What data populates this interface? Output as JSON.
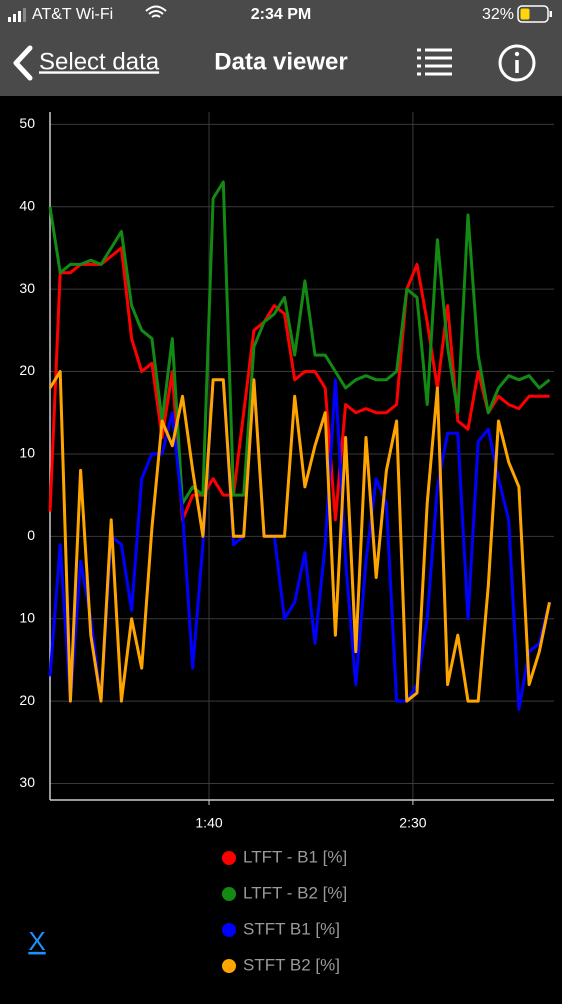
{
  "status_bar": {
    "carrier": "AT&T Wi-Fi",
    "time": "2:34 PM",
    "battery": "32%"
  },
  "nav": {
    "back": "Select data",
    "title": "Data viewer"
  },
  "chart_data": {
    "type": "line",
    "x": [
      61,
      63.5,
      66,
      68.5,
      71,
      73.5,
      76,
      78.5,
      81,
      83.5,
      86,
      88.5,
      91,
      93.5,
      96,
      98.5,
      101,
      103.5,
      106,
      108.5,
      111,
      113.5,
      116,
      118.5,
      121,
      123.5,
      126,
      128.5,
      131,
      133.5,
      136,
      138.5,
      141,
      143.5,
      146,
      148.5,
      151,
      153.5,
      156,
      158.5,
      161,
      163.5,
      166,
      168.5,
      171,
      173.5,
      176,
      178.5,
      181,
      183.5
    ],
    "series": [
      {
        "name": "LTFT - B1 [%]",
        "color": "#ff0000",
        "values": [
          3,
          32,
          32,
          33,
          33,
          33,
          34,
          35,
          24,
          20,
          21,
          12,
          20,
          2,
          5,
          5,
          7,
          5,
          5,
          15,
          25,
          26,
          28,
          27,
          19,
          20,
          20,
          18,
          2,
          16,
          15,
          15.5,
          15,
          15,
          16,
          30,
          33,
          26,
          18,
          28,
          14,
          13,
          20,
          15,
          17,
          16,
          15.5,
          17,
          17,
          17
        ]
      },
      {
        "name": "LTFT - B2 [%]",
        "color": "#138a13",
        "values": [
          40,
          32,
          33,
          33,
          33.5,
          33,
          35,
          37,
          28,
          25,
          24,
          14,
          24,
          4,
          6,
          5,
          41,
          43,
          5,
          5,
          23,
          26,
          27,
          29,
          22,
          31,
          22,
          22,
          20,
          18,
          19,
          19.5,
          19,
          19,
          20,
          30,
          29,
          16,
          36,
          23,
          15,
          39,
          22,
          15,
          18,
          19.5,
          19,
          19.5,
          18,
          19
        ]
      },
      {
        "name": "STFT B1 [%]",
        "color": "#0000ff",
        "values": [
          -17,
          -1,
          -20,
          -3,
          -10,
          -20,
          0,
          -1,
          -9,
          7,
          10,
          10,
          15,
          3,
          -16,
          -1,
          19,
          19,
          -1,
          0,
          19,
          0,
          0,
          -10,
          -8,
          -2,
          -13,
          -1,
          19,
          -3,
          -18,
          -3,
          7,
          4,
          -20,
          -20,
          -18,
          -10,
          6,
          12.5,
          12.5,
          -10,
          11.5,
          13,
          7,
          2,
          -21,
          -14,
          -13,
          -8
        ]
      },
      {
        "name": "STFT B2 [%]",
        "color": "#ffa500",
        "values": [
          18,
          20,
          -20,
          8,
          -12,
          -20,
          2,
          -20,
          -10,
          -16,
          1,
          14,
          11,
          17,
          8,
          0,
          19,
          19,
          0,
          0,
          19,
          0,
          0,
          0,
          17,
          6,
          11,
          15,
          -12,
          12,
          -14,
          12,
          -5,
          8,
          14,
          -20,
          -19,
          4,
          18,
          -18,
          -12,
          -20,
          -20,
          -6,
          14,
          9,
          6,
          -18,
          -14,
          -8
        ]
      }
    ],
    "xlim": [
      61,
      184.6
    ],
    "xticks": [
      {
        "value": 100,
        "label": "1:40"
      },
      {
        "value": 150,
        "label": "2:30"
      }
    ],
    "ylim": [
      -32,
      51.5
    ],
    "yticks": [
      50,
      40,
      30,
      20,
      10,
      0,
      {
        "value": -10,
        "label": "10"
      },
      {
        "value": -20,
        "label": "20"
      },
      {
        "value": -30,
        "label": "30"
      }
    ],
    "grid": true
  },
  "x_button": "X"
}
